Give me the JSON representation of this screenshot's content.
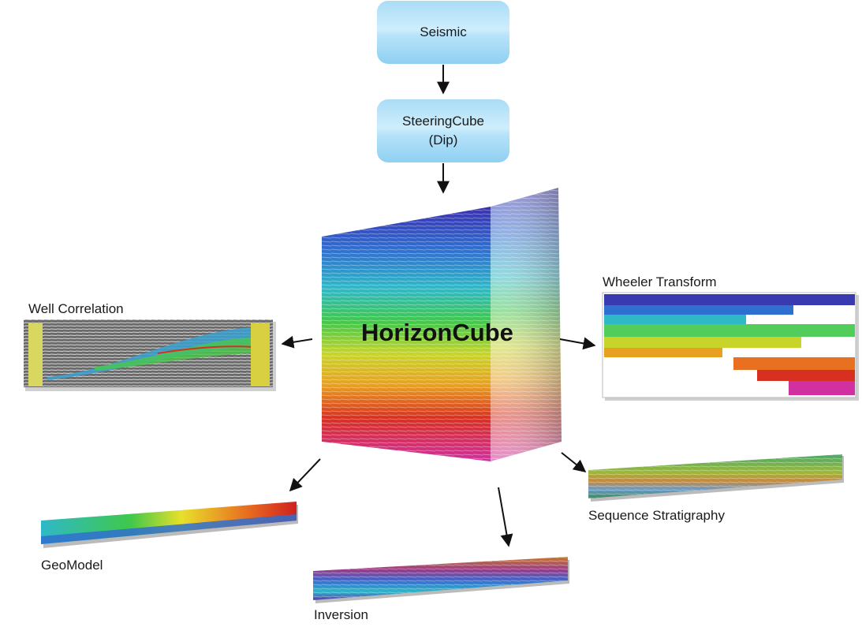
{
  "nodes": {
    "seismic": "Seismic",
    "steering_line1": "SteeringCube",
    "steering_line2": "(Dip)",
    "horizoncube": "HorizonCube",
    "well_correlation": "Well Correlation",
    "wheeler_transform": "Wheeler Transform",
    "geomodel": "GeoModel",
    "inversion": "Inversion",
    "sequence_stratigraphy": "Sequence Stratigraphy"
  },
  "colors": {
    "box_gradient_top": "#a9dcf7",
    "box_gradient_bottom": "#8fd0f2",
    "arrow": "#111111",
    "rainbow": [
      "#3a2fb0",
      "#2f6fd0",
      "#2fb8c8",
      "#3fc84a",
      "#c8d42a",
      "#e8a020",
      "#d83020",
      "#d030a0"
    ]
  },
  "icons": [
    "arrow-down-icon",
    "arrow-left-icon",
    "arrow-right-icon",
    "arrow-diagonal-icon"
  ]
}
